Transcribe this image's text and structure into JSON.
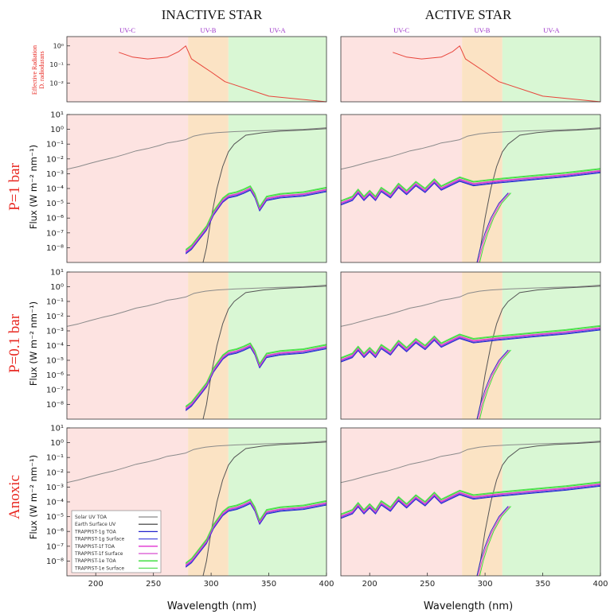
{
  "columns": [
    "INACTIVE STAR",
    "ACTIVE STAR"
  ],
  "bands": [
    {
      "label": "UV-C",
      "from": 175,
      "to": 280,
      "color": "#fde3e1"
    },
    {
      "label": "UV-B",
      "from": 280,
      "to": 315,
      "color": "#fbe3c4"
    },
    {
      "label": "UV-A",
      "from": 315,
      "to": 400,
      "color": "#d9f7d4"
    }
  ],
  "rows": [
    "P=1 bar",
    "P=0.1 bar",
    "Anoxic"
  ],
  "top_ylabel": [
    "Effective Radiation",
    "D. radiodurans"
  ],
  "ylabel": "Flux (W m⁻² nm⁻¹)",
  "xlabel": "Wavelength (nm)",
  "xticks": [
    "200",
    "250",
    "300",
    "350",
    "400"
  ],
  "yticks": [
    "10¹",
    "10⁰",
    "10⁻¹",
    "10⁻²",
    "10⁻³",
    "10⁻⁴",
    "10⁻⁵",
    "10⁻⁶",
    "10⁻⁷",
    "10⁻⁸"
  ],
  "top_yticks": [
    "10⁰",
    "10⁻¹",
    "10⁻²"
  ],
  "legend": [
    {
      "label": "Solar UV TOA",
      "color": "#8a8a8a"
    },
    {
      "label": "Earth Surface UV",
      "color": "#555555"
    },
    {
      "label": "TRAPPIST-1g TOA",
      "color": "#2222cc"
    },
    {
      "label": "TRAPPIST-1g Surface",
      "color": "#4a4ae0"
    },
    {
      "label": "TRAPPIST-1f TOA",
      "color": "#e030d0"
    },
    {
      "label": "TRAPPIST-1f Surface",
      "color": "#d84ed0"
    },
    {
      "label": "TRAPPIST-1e TOA",
      "color": "#33dd33"
    },
    {
      "label": "TRAPPIST-1e Surface",
      "color": "#55e055"
    }
  ],
  "chart_data": {
    "type": "line",
    "xlim": [
      175,
      400
    ],
    "ylim_log10": [
      -9,
      1
    ],
    "top_ylim_log10": [
      -3,
      0.5
    ],
    "xlabel": "Wavelength (nm)",
    "ylabel": "Flux (W m⁻² nm⁻¹)",
    "action_spectrum": {
      "name": "Effective Radiation D. radiodurans",
      "x": [
        220,
        232,
        245,
        262,
        272,
        278,
        283,
        300,
        312,
        350,
        400
      ],
      "y": [
        0.45,
        0.25,
        0.2,
        0.25,
        0.5,
        1.0,
        0.2,
        0.04,
        0.012,
        0.002,
        0.0003
      ]
    },
    "solar_toa": {
      "x": [
        175,
        185,
        195,
        205,
        215,
        225,
        235,
        245,
        255,
        262,
        270,
        278,
        285,
        295,
        305,
        320,
        340,
        360,
        380,
        395,
        400
      ],
      "y": [
        0.002,
        0.003,
        0.005,
        0.008,
        0.012,
        0.02,
        0.035,
        0.05,
        0.08,
        0.12,
        0.15,
        0.2,
        0.35,
        0.5,
        0.6,
        0.7,
        0.8,
        0.9,
        1.0,
        1.2,
        1.3
      ]
    },
    "earth_surface": {
      "x": [
        293,
        296,
        300,
        305,
        310,
        315,
        320,
        330,
        345,
        360,
        380,
        400
      ],
      "y": [
        1e-09,
        1e-08,
        1e-06,
        0.0001,
        0.003,
        0.03,
        0.1,
        0.4,
        0.6,
        0.75,
        0.9,
        1.1
      ]
    },
    "inactive_series": {
      "x": [
        278,
        283,
        290,
        296,
        302,
        310,
        315,
        322,
        328,
        334,
        338,
        342,
        348,
        360,
        380,
        400
      ],
      "y": [
        5e-09,
        1e-08,
        5e-08,
        2e-07,
        2e-06,
        1.5e-05,
        3e-05,
        4e-05,
        6e-05,
        0.0001,
        3e-05,
        4e-06,
        2e-05,
        3e-05,
        4e-05,
        8e-05
      ]
    },
    "active_series": {
      "x": [
        175,
        185,
        190,
        195,
        200,
        205,
        210,
        218,
        225,
        232,
        240,
        248,
        256,
        262,
        270,
        278,
        290,
        310,
        340,
        370,
        400
      ],
      "y": [
        1e-05,
        2e-05,
        6e-05,
        2e-05,
        5e-05,
        2e-05,
        8e-05,
        3e-05,
        0.00015,
        5e-05,
        0.0002,
        7e-05,
        0.0003,
        0.0001,
        0.0002,
        0.0004,
        0.0002,
        0.0003,
        0.0005,
        0.0008,
        0.0015
      ]
    },
    "active_surface_rise": {
      "x": [
        293,
        296,
        300,
        305,
        312,
        320
      ],
      "y": [
        1e-09,
        1e-08,
        1e-07,
        1e-06,
        1e-05,
        5e-05
      ]
    }
  }
}
